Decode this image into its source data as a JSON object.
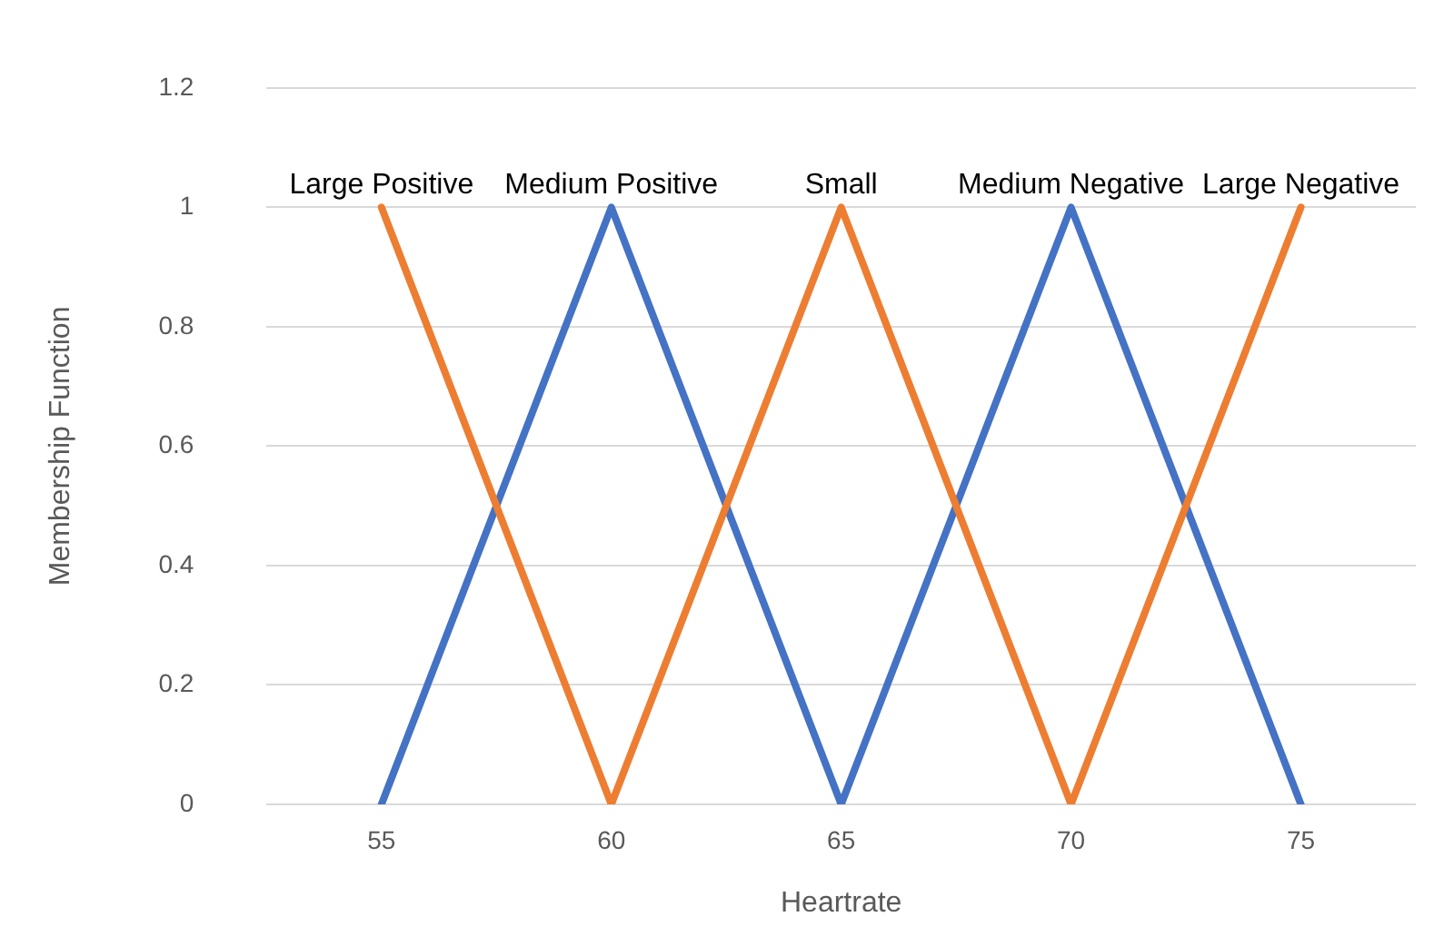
{
  "chart_data": {
    "type": "line",
    "xlabel": "Heartrate",
    "ylabel": "Membership Function",
    "categories": [
      "55",
      "60",
      "65",
      "70",
      "75"
    ],
    "series": [
      {
        "color": "#ed7d31",
        "values": [
          1,
          0,
          1,
          0,
          1
        ]
      },
      {
        "color": "#4472c4",
        "values": [
          0,
          1,
          0,
          1,
          0
        ]
      }
    ],
    "ylim": [
      0,
      1.2
    ],
    "yticks": [
      0,
      0.2,
      0.4,
      0.6,
      0.8,
      1,
      1.2
    ],
    "grid": "y",
    "legend": false,
    "marker": "none",
    "line_style": "solid",
    "annotations": [
      {
        "text": "Large Positive",
        "x": "55",
        "y": 1
      },
      {
        "text": "Medium Positive",
        "x": "60",
        "y": 1
      },
      {
        "text": "Small",
        "x": "65",
        "y": 1
      },
      {
        "text": "Medium Negative",
        "x": "70",
        "y": 1
      },
      {
        "text": "Large Negative",
        "x": "75",
        "y": 1
      }
    ]
  }
}
